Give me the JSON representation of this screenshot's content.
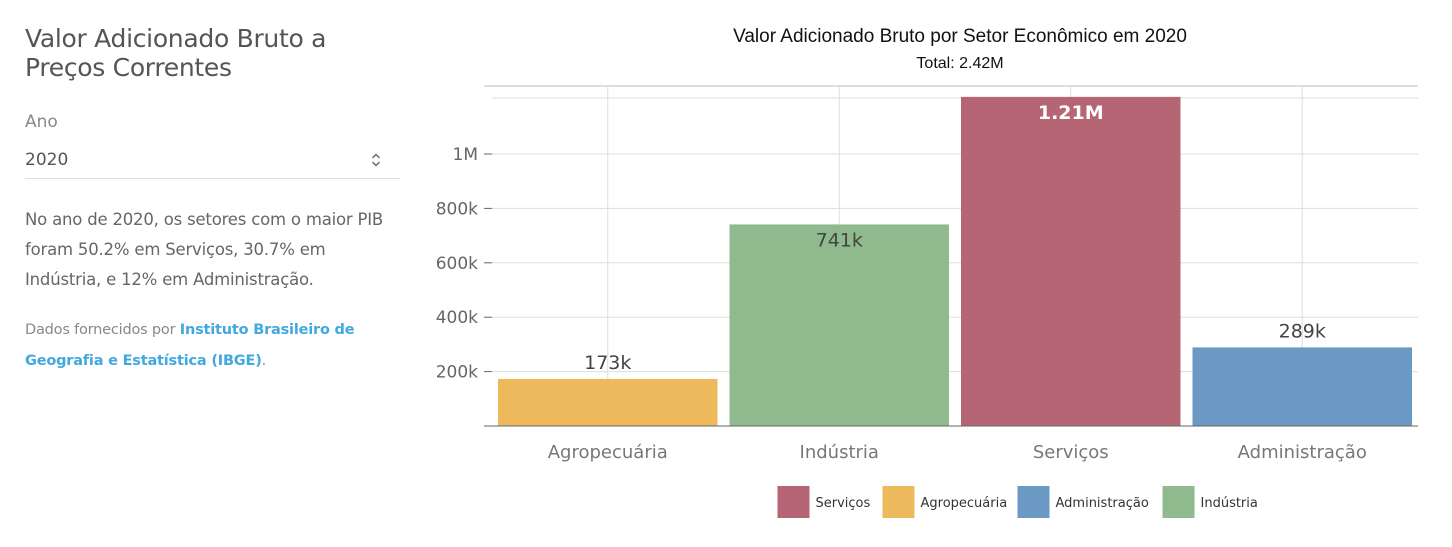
{
  "sidebar": {
    "title": "Valor Adicionado Bruto a Preços Correntes",
    "year_label": "Ano",
    "year_value": "2020",
    "summary": "No ano de 2020, os setores com o maior PIB foram 50.2% em Serviços, 30.7% em Indústria, e 12% em Administração.",
    "source_prefix": "Dados fornecidos por ",
    "source_link": "Instituto Brasileiro de Geografia e Estatística (IBGE)",
    "source_suffix": ".",
    "link_color": "#42a9e0"
  },
  "chart_data": {
    "type": "bar",
    "title": "Valor Adicionado Bruto por Setor Econômico em 2020",
    "subtitle": "Total: 2.42M",
    "categories": [
      "Agropecuária",
      "Indústria",
      "Serviços",
      "Administração"
    ],
    "values": [
      173000,
      741000,
      1210000,
      289000
    ],
    "data_labels": [
      "173k",
      "741k",
      "1.21M",
      "289k"
    ],
    "colors": [
      "#EDB95C",
      "#8FBA8E",
      "#B66575",
      "#6A9AC4"
    ],
    "y_ticks": [
      200000,
      400000,
      600000,
      800000,
      1000000
    ],
    "y_tick_labels": [
      "200k",
      "400k",
      "600k",
      "800k",
      "1M"
    ],
    "ylim": [
      0,
      1250000
    ],
    "grid": true,
    "legend_position": "bottom",
    "legend": [
      {
        "label": "Serviços",
        "color": "#B66575"
      },
      {
        "label": "Agropecuária",
        "color": "#EDB95C"
      },
      {
        "label": "Administração",
        "color": "#6A9AC4"
      },
      {
        "label": "Indústria",
        "color": "#8FBA8E"
      }
    ]
  }
}
